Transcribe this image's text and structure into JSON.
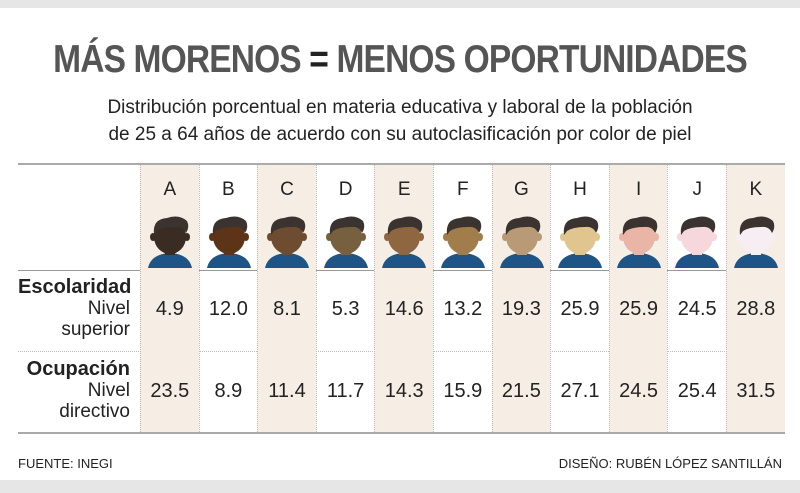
{
  "title": {
    "left": "MÁS MORENOS",
    "eq": "=",
    "right": "MENOS OPORTUNIDADES"
  },
  "subtitle": {
    "line1": "Distribución porcentual en materia educativa y laboral de la población",
    "line2": "de 25 a 64 años de acuerdo con su autoclasificación por color de piel"
  },
  "colors": {
    "hair": "#3a3330",
    "shirt": "#1f5586",
    "shade": "#f6eee4",
    "skin": [
      "#3a2c22",
      "#5e3418",
      "#6e4c30",
      "#77603f",
      "#8e6640",
      "#a07d4a",
      "#b89a76",
      "#e0c58f",
      "#e8b5a6",
      "#f5d7dc",
      "#f6eef2"
    ]
  },
  "chart_data": {
    "type": "table",
    "categories": [
      "A",
      "B",
      "C",
      "D",
      "E",
      "F",
      "G",
      "H",
      "I",
      "J",
      "K"
    ],
    "rows": [
      {
        "title": "Escolaridad",
        "sub1": "Nivel",
        "sub2": "superior",
        "values": [
          4.9,
          12.0,
          8.1,
          5.3,
          14.6,
          13.2,
          19.3,
          25.9,
          25.9,
          24.5,
          28.8
        ]
      },
      {
        "title": "Ocupación",
        "sub1": "Nivel",
        "sub2": "directivo",
        "values": [
          23.5,
          8.9,
          11.4,
          11.7,
          14.3,
          15.9,
          21.5,
          27.1,
          24.5,
          25.4,
          31.5
        ]
      }
    ]
  },
  "footer": {
    "source": "FUENTE: INEGI",
    "design": "DISEÑO: RUBÉN LÓPEZ SANTILLÁN"
  }
}
